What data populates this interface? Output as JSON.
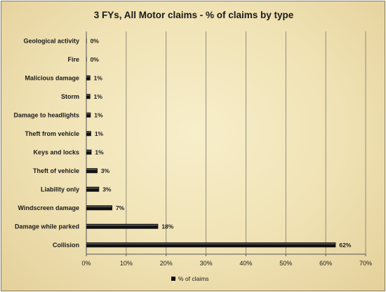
{
  "chart_data": {
    "type": "bar",
    "orientation": "horizontal",
    "title": "3 FYs, All Motor claims - % of claims by type",
    "categories": [
      "Geological activity",
      "Fire",
      "Malicious damage",
      "Storm",
      "Damage to headlights",
      "Theft from vehicle",
      "Keys and locks",
      "Theft of vehicle",
      "Liability only",
      "Windscreen damage",
      "Damage while parked",
      "Collision"
    ],
    "series": [
      {
        "name": "% of claims",
        "values": [
          0.1,
          0.1,
          1.0,
          1.0,
          1.1,
          1.2,
          1.3,
          2.8,
          3.2,
          6.5,
          18,
          62.5
        ],
        "labels": [
          "0%",
          "0%",
          "1%",
          "1%",
          "1%",
          "1%",
          "1%",
          "3%",
          "3%",
          "7%",
          "18%",
          "62%"
        ]
      }
    ],
    "xlim": [
      0,
      70
    ],
    "xticks": [
      0,
      10,
      20,
      30,
      40,
      50,
      60,
      70
    ],
    "xtick_labels": [
      "0%",
      "10%",
      "20%",
      "30%",
      "40%",
      "50%",
      "60%",
      "70%"
    ],
    "grid": "vertical",
    "legend": {
      "position": "bottom",
      "entries": [
        "% of claims"
      ]
    },
    "colors": {
      "bar": "#111111",
      "gridline": "#7a7a6a",
      "background": "#f3e8c2"
    }
  }
}
